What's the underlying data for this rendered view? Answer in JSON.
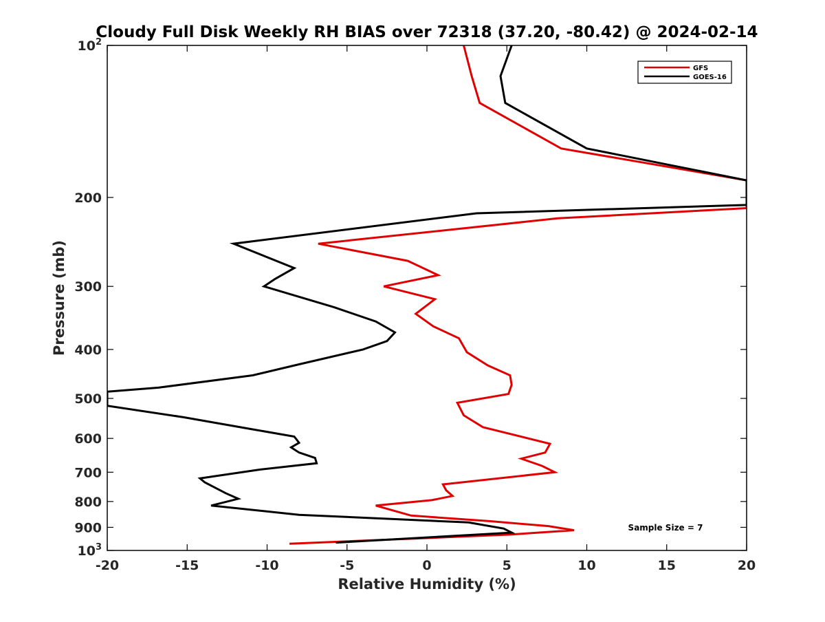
{
  "chart_data": {
    "type": "line",
    "title": "Cloudy Full Disk Weekly RH BIAS over 72318 (37.20, -80.42) @ 2024-02-14",
    "xlabel": "Relative Humidity (%)",
    "ylabel": "Pressure (mb)",
    "xlim": [
      -20,
      20
    ],
    "ylim": [
      100,
      1000
    ],
    "y_scale": "log",
    "y_reversed": true,
    "grid": false,
    "legend_position": "top-right",
    "x_ticks": [
      -20,
      -15,
      -10,
      -5,
      0,
      5,
      10,
      15,
      20
    ],
    "x_tick_labels": [
      "-20",
      "-15",
      "-10",
      "-5",
      "0",
      "5",
      "10",
      "15",
      "20"
    ],
    "y_ticks": [
      100,
      200,
      300,
      400,
      500,
      600,
      700,
      800,
      900,
      1000
    ],
    "y_tick_labels": [
      "10^2",
      "200",
      "300",
      "400",
      "500",
      "600",
      "700",
      "800",
      "900",
      "10^3"
    ],
    "annotation": "Sample Size = 7",
    "series": [
      {
        "name": "GFS",
        "color": "#e00000",
        "points": [
          [
            2.3,
            100
          ],
          [
            2.8,
            115
          ],
          [
            3.3,
            130
          ],
          [
            8.4,
            160
          ],
          [
            20,
            185
          ],
          [
            20,
            210
          ],
          [
            8.2,
            220
          ],
          [
            -6.8,
            247
          ],
          [
            -1.2,
            267
          ],
          [
            0.7,
            285
          ],
          [
            -2.7,
            300
          ],
          [
            0.5,
            318
          ],
          [
            -0.7,
            340
          ],
          [
            0.4,
            360
          ],
          [
            2.0,
            380
          ],
          [
            2.5,
            405
          ],
          [
            3.8,
            430
          ],
          [
            5.2,
            450
          ],
          [
            5.3,
            470
          ],
          [
            5.1,
            490
          ],
          [
            1.9,
            510
          ],
          [
            2.3,
            540
          ],
          [
            3.5,
            570
          ],
          [
            7.7,
            615
          ],
          [
            7.4,
            640
          ],
          [
            5.9,
            658
          ],
          [
            7.2,
            680
          ],
          [
            8.0,
            700
          ],
          [
            1.0,
            740
          ],
          [
            1.2,
            760
          ],
          [
            1.6,
            780
          ],
          [
            0.3,
            795
          ],
          [
            -3.2,
            815
          ],
          [
            -1.0,
            853
          ],
          [
            3.9,
            875
          ],
          [
            7.6,
            895
          ],
          [
            9.2,
            912
          ],
          [
            5.2,
            930
          ],
          [
            -8.6,
            970
          ]
        ]
      },
      {
        "name": "GOES-16",
        "color": "#000000",
        "points": [
          [
            5.3,
            100
          ],
          [
            4.6,
            115
          ],
          [
            4.9,
            130
          ],
          [
            10.0,
            160
          ],
          [
            20,
            185
          ],
          [
            20,
            207
          ],
          [
            3.1,
            215
          ],
          [
            -12.1,
            247
          ],
          [
            -8.3,
            276
          ],
          [
            -9.5,
            290
          ],
          [
            -10.2,
            300
          ],
          [
            -5.8,
            330
          ],
          [
            -3.2,
            352
          ],
          [
            -2.0,
            370
          ],
          [
            -2.5,
            385
          ],
          [
            -4.0,
            400
          ],
          [
            -8.0,
            428
          ],
          [
            -10.9,
            450
          ],
          [
            -16.8,
            476
          ],
          [
            -20,
            485
          ],
          [
            -20,
            517
          ],
          [
            -15.2,
            545
          ],
          [
            -11.0,
            575
          ],
          [
            -8.3,
            595
          ],
          [
            -8.0,
            612
          ],
          [
            -8.5,
            625
          ],
          [
            -8.0,
            640
          ],
          [
            -7.0,
            656
          ],
          [
            -6.9,
            672
          ],
          [
            -10.5,
            692
          ],
          [
            -14.2,
            720
          ],
          [
            -13.9,
            733
          ],
          [
            -12.6,
            770
          ],
          [
            -11.8,
            790
          ],
          [
            -13.5,
            815
          ],
          [
            -8.0,
            850
          ],
          [
            2.6,
            880
          ],
          [
            4.8,
            905
          ],
          [
            5.3,
            922
          ],
          [
            -5.7,
            965
          ]
        ]
      }
    ]
  }
}
